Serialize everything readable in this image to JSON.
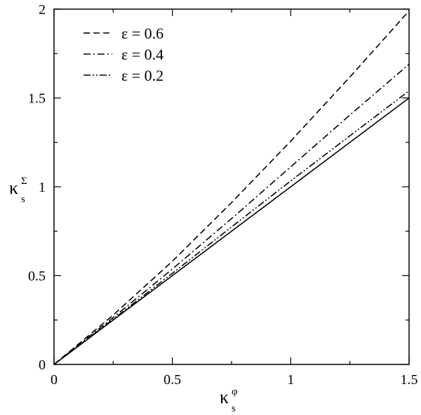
{
  "chart_data": {
    "type": "line",
    "xlabel": {
      "main": "κ",
      "sub": "s",
      "sup": "φ"
    },
    "ylabel": {
      "main": "κ",
      "sub": "s",
      "sup": "Σ"
    },
    "xlim": [
      0,
      1.5
    ],
    "ylim": [
      0,
      2
    ],
    "x_ticks": [
      0,
      0.5,
      1,
      1.5
    ],
    "x_tick_labels": [
      "0",
      "0.5",
      "1",
      "1.5"
    ],
    "y_ticks": [
      0,
      0.5,
      1,
      1.5,
      2
    ],
    "y_tick_labels": [
      "0",
      "0.5",
      "1",
      "1.5",
      "2"
    ],
    "grid": false,
    "legend_position": "top-left",
    "x": [
      0,
      0.25,
      0.5,
      0.75,
      1.0,
      1.25,
      1.5
    ],
    "series": [
      {
        "name": "ε = 0.6",
        "style": "dashed",
        "values": [
          0,
          0.278,
          0.581,
          0.911,
          1.257,
          1.618,
          1.99
        ]
      },
      {
        "name": "ε = 0.4",
        "style": "dash-dot",
        "values": [
          0,
          0.264,
          0.537,
          0.821,
          1.112,
          1.404,
          1.69
        ]
      },
      {
        "name": "ε = 0.2",
        "style": "dash-dot-dot",
        "values": [
          0,
          0.255,
          0.513,
          0.774,
          1.033,
          1.287,
          1.54
        ]
      },
      {
        "name": "",
        "style": "solid",
        "values": [
          0,
          0.25,
          0.5,
          0.75,
          1.0,
          1.25,
          1.5
        ]
      }
    ],
    "colors": {
      "line": "#000000",
      "background": "#ffffff"
    }
  }
}
